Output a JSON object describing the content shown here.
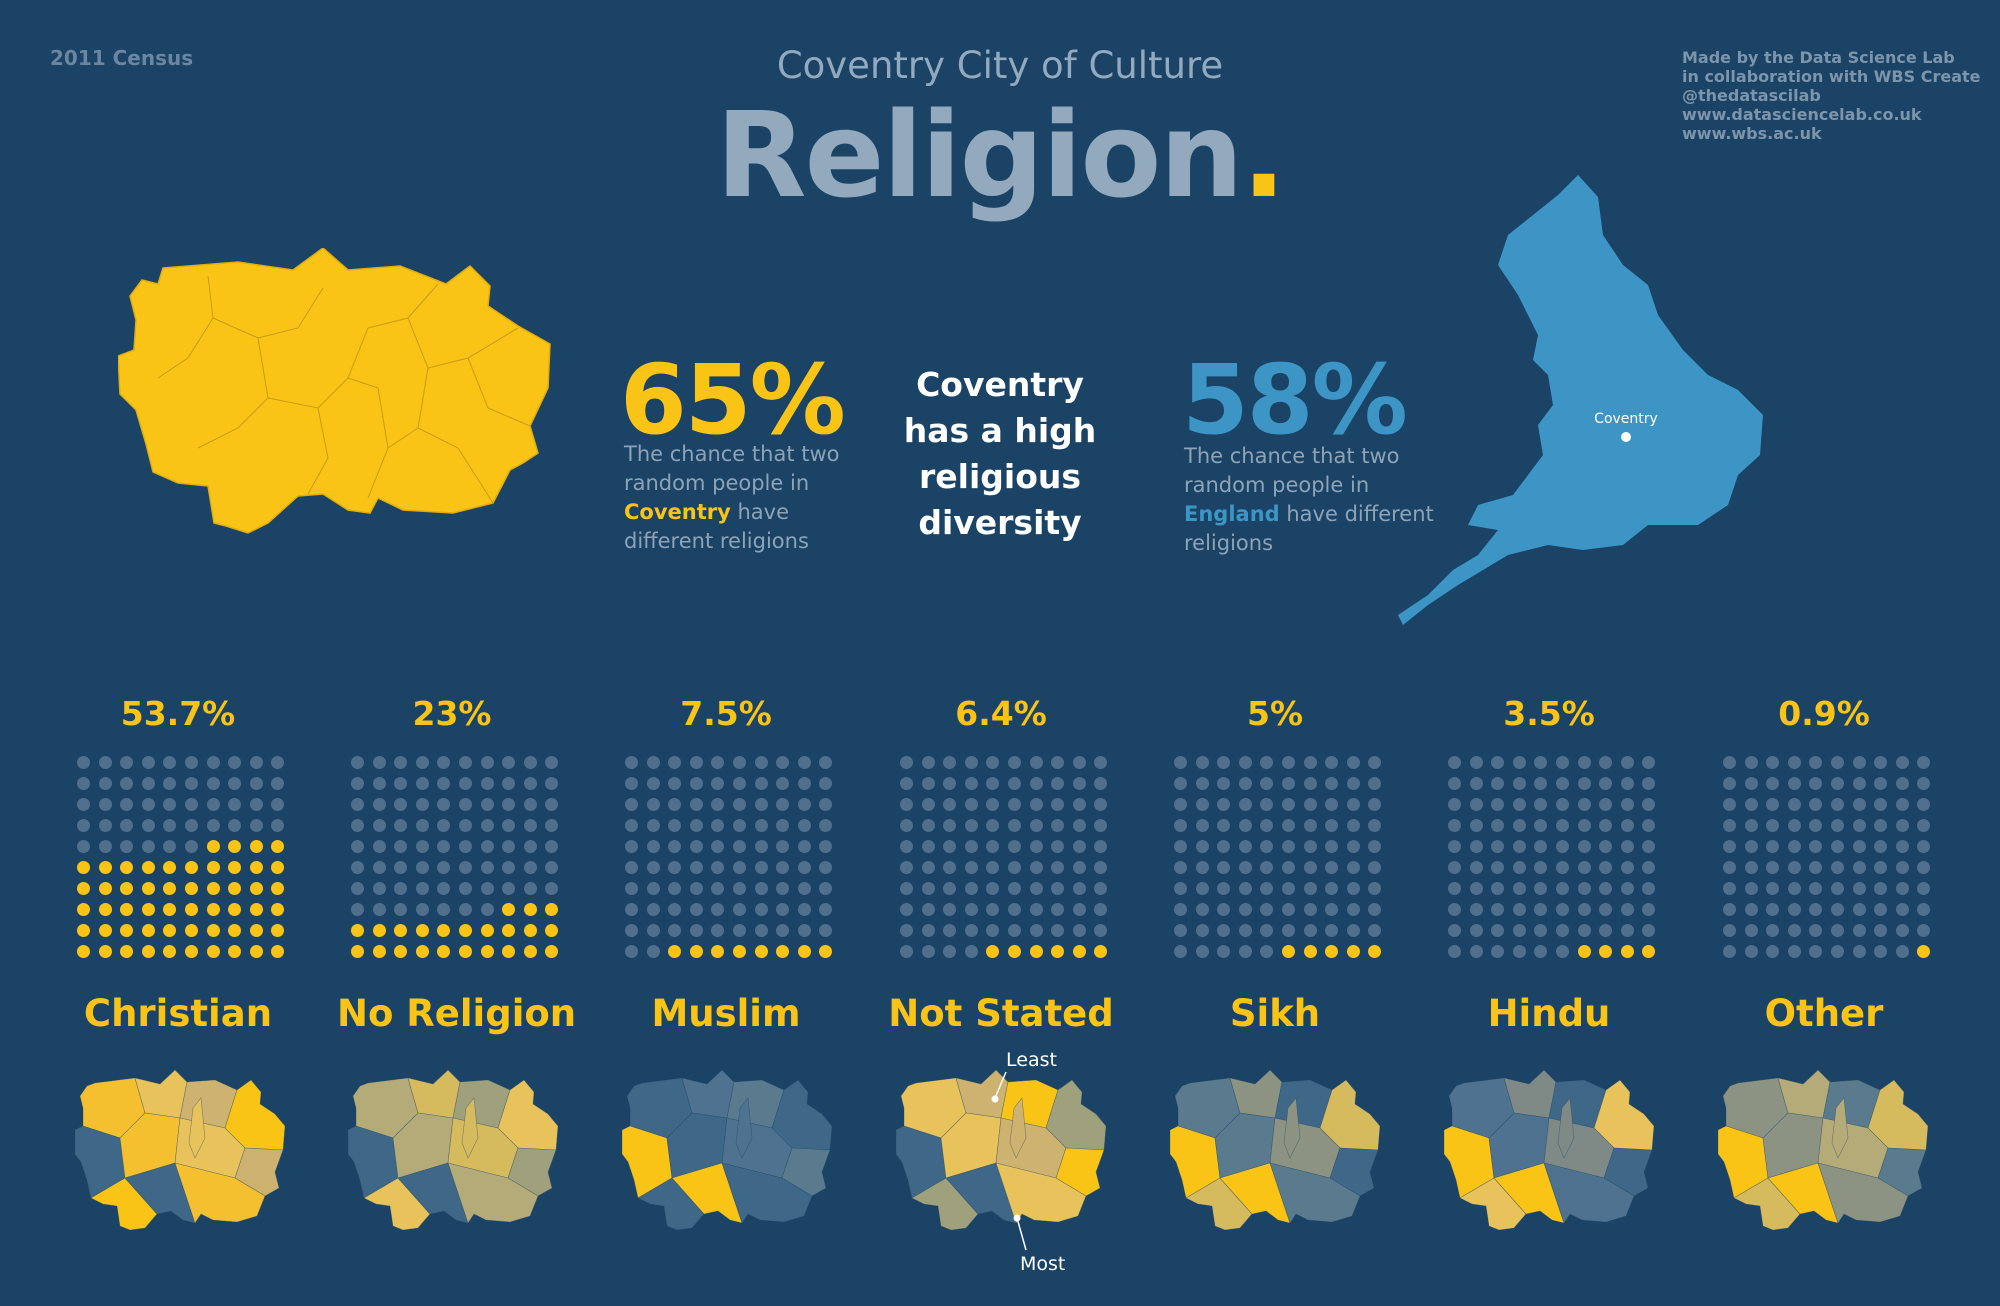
{
  "header": {
    "census": "2011 Census",
    "subtitle": "Coventry City of Culture",
    "title": "Religion",
    "title_dot": ".",
    "credits": [
      "Made by the Data Science Lab",
      "in collaboration with WBS Create",
      "@thedatascilab",
      "www.datasciencelab.co.uk",
      "www.wbs.ac.uk"
    ]
  },
  "coventry": {
    "pct": "65%",
    "desc_1": "The chance that two random people in",
    "place": "Coventry",
    "desc_2": "have different religions"
  },
  "england": {
    "pct": "58%",
    "desc_1": "The chance that two random people in",
    "place": "England",
    "desc_2": "have different religions",
    "map_label": "Coventry"
  },
  "diversity_text": "Coventry has a high religious diversity",
  "religions": [
    {
      "name": "Christian",
      "pct": "53.7%",
      "dots": 54
    },
    {
      "name": "No Religion",
      "pct": "23%",
      "dots": 23
    },
    {
      "name": "Muslim",
      "pct": "7.5%",
      "dots": 8
    },
    {
      "name": "Not Stated",
      "pct": "6.4%",
      "dots": 6
    },
    {
      "name": "Sikh",
      "pct": "5%",
      "dots": 5
    },
    {
      "name": "Hindu",
      "pct": "3.5%",
      "dots": 4
    },
    {
      "name": "Other",
      "pct": "0.9%",
      "dots": 1
    }
  ],
  "map_labels": {
    "least": "Least",
    "most": "Most"
  },
  "colors": {
    "background": "#1a4366",
    "yellow": "#f9c416",
    "blue": "#3d95c6",
    "dot_off": "#4f6f8d"
  }
}
